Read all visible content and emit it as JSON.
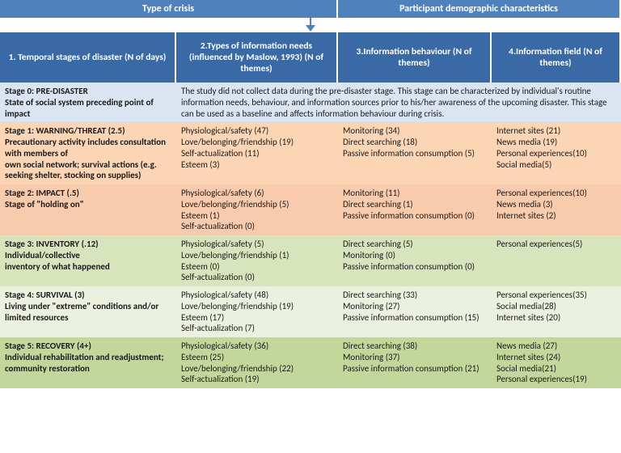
{
  "colors": {
    "topbar": "#4f81bd",
    "header": "#3a6aa6",
    "border_white": "#ffffff",
    "arrow_stroke": "#4f81bd",
    "rows": [
      "#dbe5f1",
      "#fcd5b4",
      "#f8cbad",
      "#d8e4bc",
      "#ebf1de",
      "#c4d79b"
    ]
  },
  "top": {
    "left": "Type of crisis",
    "right": "Participant  demographic  characteristics"
  },
  "headers": {
    "c1": "1. Temporal  stages of disaster  (N of days)",
    "c2": "2.Types of information  needs (influenced  by Maslow, 1993)  (N of themes)",
    "c3": "3.Information  behaviour   (N of themes)",
    "c4": "4.Information   field  (N of themes)"
  },
  "rows": [
    {
      "title": "Stage 0: PRE-DISASTER",
      "desc": "State of social system preceding  point of impact",
      "merged": "The study did not collect data during the pre-disaster stage. This stage can be characterized by individual's routine information needs, behaviour, and information sources prior to his/her awareness of the upcoming disaster. This stage can be used as a baseline and affects information behaviour during crisis."
    },
    {
      "title": "Stage 1: WARNING/THREAT (2.5)",
      "desc": "Precautionary activity includes consultation  with members of\nown social network; survival actions (e.g. seeking shelter, stocking on supplies)",
      "c2": [
        "Physiological/safety (47)",
        "Love/belonging/friendship (19)",
        "Self-actualization (11)",
        "Esteem (3)"
      ],
      "c3": [
        "Monitoring (34)",
        "Direct searching (18)",
        "Passive information consumption (5)"
      ],
      "c4": [
        "Internet sites (21)",
        "News media (19)",
        "Personal experiences(10)",
        "Social media(5)"
      ]
    },
    {
      "title": "Stage 2: IMPACT (.5)",
      "desc": "Stage of \"holding  on\"",
      "c2": [
        "Physiological/safety (6)",
        "Love/belonging/friendship (5)",
        "Esteem (1)",
        "Self-actualization (0)"
      ],
      "c3": [
        "Monitoring (11)",
        "Direct searching (1)",
        "Passive information consumption (0)"
      ],
      "c4": [
        "Personal experiences(10)",
        "News media (3)",
        "Internet sites (2)"
      ]
    },
    {
      "title": "Stage 3: INVENTORY (.12)",
      "desc": "Individual/collective\ninventory of what happened",
      "c2": [
        "Physiological/safety (5)",
        "Love/belonging/friendship (1)",
        "Esteem (0)",
        "Self-actualization (0)"
      ],
      "c3": [
        "Direct searching (5)",
        "Monitoring (0)",
        "Passive information consumption (0)"
      ],
      "c4": [
        "Personal experiences(5)"
      ]
    },
    {
      "title": "Stage 4: SURVIVAL (3)",
      "desc": "Living under \"extreme\" conditions  and/or limited resources",
      "c2": [
        "Physiological/safety (48)",
        "Love/belonging/friendship (19)",
        "Esteem (17)",
        "Self-actualization (7)"
      ],
      "c3": [
        "Direct searching (33)",
        "Monitoring (27)",
        "Passive information consumption (15)"
      ],
      "c4": [
        "Personal experiences(35)",
        "Social media(28)",
        "Internet sites (20)"
      ]
    },
    {
      "title": "Stage 5: RECOVERY (4+)",
      "desc": "Individual  rehabilitation  and readjustment; community  restoration",
      "c2": [
        "Physiological/safety (36)",
        "Esteem (25)",
        "Love/belonging/friendship (22)",
        "Self-actualization (19)"
      ],
      "c3": [
        "Direct searching (38)",
        "Monitoring (37)",
        "Passive information consumption (21)"
      ],
      "c4": [
        "News media (27)",
        "Internet sites (24)",
        "Social media(21)",
        "Personal experiences(19)"
      ]
    }
  ]
}
